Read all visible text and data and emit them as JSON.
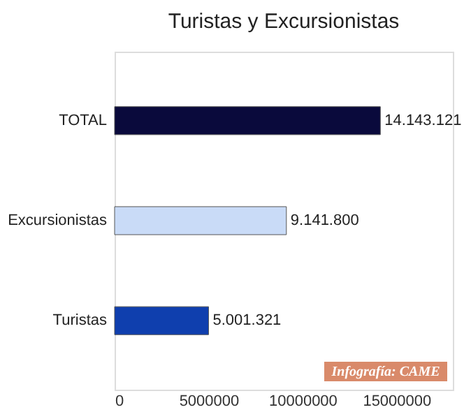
{
  "chart_data": {
    "type": "bar",
    "orientation": "horizontal",
    "title": "Turistas y Excursionistas",
    "categories": [
      "TOTAL",
      "Excursionistas",
      "Turistas"
    ],
    "values": [
      14143121,
      9141800,
      5001321
    ],
    "colors": [
      "#0a0a3c",
      "#c9dbf7",
      "#0f3fae"
    ],
    "value_labels": [
      "14.143.121",
      "9.141.800",
      "5.001.321"
    ],
    "xlim": [
      0,
      18000000
    ],
    "xticks": [
      0,
      5000000,
      10000000,
      15000000
    ],
    "grid": false,
    "annotations": [
      "Infografía: CAME"
    ]
  }
}
